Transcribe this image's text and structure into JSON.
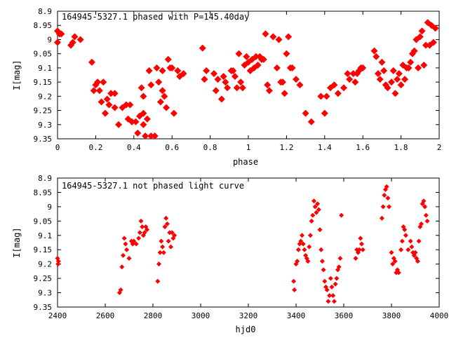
{
  "chart_data": [
    {
      "type": "scatter",
      "title": "164945-5327.1 phased with P=145.40day",
      "xlabel": "phase",
      "ylabel": "I[mag]",
      "xlim": [
        0,
        2
      ],
      "ylim": [
        9.35,
        8.9
      ],
      "y_inverted": true,
      "grid": false,
      "legend": "none",
      "marker_color": "#ff0000",
      "x_ticks": [
        "0",
        "0.2",
        "0.4",
        "0.6",
        "0.8",
        "1",
        "1.2",
        "1.4",
        "1.6",
        "1.8",
        "2"
      ],
      "y_ticks": [
        "8.9",
        "8.95",
        "9",
        "9.05",
        "9.1",
        "9.15",
        "9.2",
        "9.25",
        "9.3",
        "9.35"
      ],
      "points": [
        [
          0.0,
          8.97
        ],
        [
          0.01,
          8.98
        ],
        [
          0.02,
          8.98
        ],
        [
          0.0,
          9.01
        ],
        [
          0.07,
          9.02
        ],
        [
          0.08,
          9.01
        ],
        [
          0.09,
          8.99
        ],
        [
          0.12,
          9.0
        ],
        [
          0.18,
          9.08
        ],
        [
          0.19,
          9.18
        ],
        [
          0.2,
          9.16
        ],
        [
          0.21,
          9.15
        ],
        [
          0.22,
          9.18
        ],
        [
          0.23,
          9.22
        ],
        [
          0.24,
          9.15
        ],
        [
          0.25,
          9.26
        ],
        [
          0.26,
          9.21
        ],
        [
          0.27,
          9.23
        ],
        [
          0.28,
          9.19
        ],
        [
          0.3,
          9.19
        ],
        [
          0.3,
          9.24
        ],
        [
          0.32,
          9.3
        ],
        [
          0.34,
          9.24
        ],
        [
          0.36,
          9.23
        ],
        [
          0.37,
          9.28
        ],
        [
          0.38,
          9.23
        ],
        [
          0.39,
          9.29
        ],
        [
          0.41,
          9.29
        ],
        [
          0.42,
          9.33
        ],
        [
          0.43,
          9.27
        ],
        [
          0.44,
          9.17
        ],
        [
          0.45,
          9.2
        ],
        [
          0.45,
          9.26
        ],
        [
          0.45,
          9.3
        ],
        [
          0.46,
          9.34
        ],
        [
          0.47,
          9.28
        ],
        [
          0.48,
          9.11
        ],
        [
          0.49,
          9.16
        ],
        [
          0.49,
          9.34
        ],
        [
          0.51,
          9.34
        ],
        [
          0.52,
          9.1
        ],
        [
          0.53,
          9.15
        ],
        [
          0.54,
          9.22
        ],
        [
          0.55,
          9.18
        ],
        [
          0.55,
          9.11
        ],
        [
          0.56,
          9.2
        ],
        [
          0.57,
          9.24
        ],
        [
          0.58,
          9.07
        ],
        [
          0.59,
          9.1
        ],
        [
          0.6,
          9.1
        ],
        [
          0.61,
          9.26
        ],
        [
          0.63,
          9.11
        ],
        [
          0.64,
          9.13
        ],
        [
          0.66,
          9.12
        ],
        [
          0.76,
          9.03
        ],
        [
          0.77,
          9.14
        ],
        [
          0.78,
          9.11
        ],
        [
          0.82,
          9.12
        ],
        [
          0.83,
          9.18
        ],
        [
          0.84,
          9.14
        ],
        [
          0.86,
          9.21
        ],
        [
          0.87,
          9.13
        ],
        [
          0.88,
          9.15
        ],
        [
          0.89,
          9.17
        ],
        [
          0.91,
          9.11
        ],
        [
          0.92,
          9.11
        ],
        [
          0.93,
          9.13
        ],
        [
          0.94,
          9.17
        ],
        [
          0.95,
          9.05
        ],
        [
          0.96,
          9.15
        ],
        [
          0.97,
          9.17
        ],
        [
          0.98,
          9.09
        ],
        [
          0.99,
          9.06
        ],
        [
          1.0,
          9.08
        ],
        [
          1.01,
          9.11
        ],
        [
          1.02,
          9.07
        ],
        [
          1.03,
          9.1
        ],
        [
          1.04,
          9.06
        ],
        [
          1.05,
          9.09
        ],
        [
          1.06,
          9.06
        ],
        [
          1.07,
          9.07
        ],
        [
          1.08,
          9.07
        ],
        [
          1.09,
          8.98
        ],
        [
          1.1,
          9.16
        ],
        [
          1.11,
          9.18
        ],
        [
          1.13,
          8.99
        ],
        [
          1.15,
          9.1
        ],
        [
          1.16,
          9.0
        ],
        [
          1.17,
          9.15
        ],
        [
          1.18,
          9.15
        ],
        [
          1.19,
          9.19
        ],
        [
          1.2,
          9.05
        ],
        [
          1.21,
          8.99
        ],
        [
          1.22,
          9.1
        ],
        [
          1.23,
          9.1
        ],
        [
          1.25,
          9.14
        ],
        [
          1.27,
          9.16
        ],
        [
          1.3,
          9.26
        ],
        [
          1.33,
          9.29
        ],
        [
          1.38,
          9.2
        ],
        [
          1.4,
          9.26
        ],
        [
          1.41,
          9.2
        ],
        [
          1.43,
          9.17
        ],
        [
          1.45,
          9.16
        ],
        [
          1.47,
          9.19
        ],
        [
          1.5,
          9.17
        ],
        [
          1.52,
          9.12
        ],
        [
          1.53,
          9.14
        ],
        [
          1.55,
          9.12
        ],
        [
          1.56,
          9.15
        ],
        [
          1.57,
          9.12
        ],
        [
          1.58,
          9.11
        ],
        [
          1.59,
          9.1
        ],
        [
          1.6,
          9.1
        ],
        [
          1.66,
          9.04
        ],
        [
          1.67,
          9.06
        ],
        [
          1.68,
          9.12
        ],
        [
          1.69,
          9.14
        ],
        [
          1.7,
          9.08
        ],
        [
          1.71,
          9.11
        ],
        [
          1.72,
          9.16
        ],
        [
          1.73,
          9.17
        ],
        [
          1.75,
          9.15
        ],
        [
          1.76,
          9.11
        ],
        [
          1.77,
          9.19
        ],
        [
          1.78,
          9.14
        ],
        [
          1.79,
          9.12
        ],
        [
          1.8,
          9.16
        ],
        [
          1.81,
          9.09
        ],
        [
          1.82,
          9.14
        ],
        [
          1.83,
          9.1
        ],
        [
          1.84,
          9.1
        ],
        [
          1.85,
          9.08
        ],
        [
          1.86,
          9.05
        ],
        [
          1.87,
          9.04
        ],
        [
          1.88,
          9.0
        ],
        [
          1.89,
          9.1
        ],
        [
          1.9,
          8.99
        ],
        [
          1.91,
          8.97
        ],
        [
          1.92,
          9.09
        ],
        [
          1.93,
          9.02
        ],
        [
          1.94,
          8.94
        ],
        [
          1.95,
          9.02
        ],
        [
          1.96,
          8.95
        ],
        [
          1.97,
          9.01
        ],
        [
          1.98,
          8.96
        ]
      ]
    },
    {
      "type": "scatter",
      "title": "164945-5327.1 not phased light curve",
      "xlabel": "hjd0",
      "ylabel": "I[mag]",
      "xlim": [
        2400,
        4000
      ],
      "ylim": [
        9.35,
        8.9
      ],
      "y_inverted": true,
      "grid": false,
      "legend": "none",
      "marker_color": "#ff0000",
      "x_ticks": [
        "2400",
        "2600",
        "2800",
        "3000",
        "3200",
        "3400",
        "3600",
        "3800",
        "4000"
      ],
      "y_ticks": [
        "8.9",
        "8.95",
        "9",
        "9.05",
        "9.1",
        "9.15",
        "9.2",
        "9.25",
        "9.3",
        "9.35"
      ],
      "points": [
        [
          2400,
          9.18
        ],
        [
          2402,
          9.2
        ],
        [
          2404,
          9.19
        ],
        [
          2660,
          9.3
        ],
        [
          2665,
          9.29
        ],
        [
          2670,
          9.21
        ],
        [
          2675,
          9.17
        ],
        [
          2680,
          9.11
        ],
        [
          2685,
          9.13
        ],
        [
          2690,
          9.15
        ],
        [
          2700,
          9.18
        ],
        [
          2710,
          9.12
        ],
        [
          2715,
          9.13
        ],
        [
          2720,
          9.12
        ],
        [
          2730,
          9.13
        ],
        [
          2740,
          9.11
        ],
        [
          2745,
          9.09
        ],
        [
          2750,
          9.05
        ],
        [
          2755,
          9.07
        ],
        [
          2760,
          9.1
        ],
        [
          2765,
          9.09
        ],
        [
          2770,
          9.07
        ],
        [
          2775,
          9.08
        ],
        [
          2820,
          9.26
        ],
        [
          2825,
          9.2
        ],
        [
          2830,
          9.16
        ],
        [
          2835,
          9.12
        ],
        [
          2840,
          9.14
        ],
        [
          2845,
          9.16
        ],
        [
          2850,
          9.07
        ],
        [
          2855,
          9.04
        ],
        [
          2860,
          9.06
        ],
        [
          2865,
          9.12
        ],
        [
          2870,
          9.09
        ],
        [
          2875,
          9.14
        ],
        [
          2880,
          9.09
        ],
        [
          2885,
          9.11
        ],
        [
          2890,
          9.1
        ],
        [
          3390,
          9.26
        ],
        [
          3393,
          9.29
        ],
        [
          3400,
          9.2
        ],
        [
          3405,
          9.19
        ],
        [
          3410,
          9.15
        ],
        [
          3415,
          9.13
        ],
        [
          3420,
          9.12
        ],
        [
          3425,
          9.1
        ],
        [
          3430,
          9.13
        ],
        [
          3435,
          9.15
        ],
        [
          3440,
          9.17
        ],
        [
          3445,
          9.18
        ],
        [
          3450,
          9.19
        ],
        [
          3455,
          9.14
        ],
        [
          3460,
          9.1
        ],
        [
          3465,
          9.05
        ],
        [
          3470,
          9.03
        ],
        [
          3475,
          8.98
        ],
        [
          3480,
          9.0
        ],
        [
          3485,
          9.02
        ],
        [
          3490,
          8.99
        ],
        [
          3495,
          9.01
        ],
        [
          3500,
          9.08
        ],
        [
          3505,
          9.15
        ],
        [
          3510,
          9.19
        ],
        [
          3515,
          9.22
        ],
        [
          3520,
          9.26
        ],
        [
          3525,
          9.28
        ],
        [
          3530,
          9.29
        ],
        [
          3535,
          9.33
        ],
        [
          3540,
          9.31
        ],
        [
          3545,
          9.25
        ],
        [
          3550,
          9.28
        ],
        [
          3555,
          9.31
        ],
        [
          3560,
          9.33
        ],
        [
          3565,
          9.27
        ],
        [
          3570,
          9.25
        ],
        [
          3575,
          9.22
        ],
        [
          3580,
          9.21
        ],
        [
          3585,
          9.18
        ],
        [
          3590,
          9.03
        ],
        [
          3650,
          9.18
        ],
        [
          3655,
          9.15
        ],
        [
          3660,
          9.16
        ],
        [
          3665,
          9.15
        ],
        [
          3670,
          9.11
        ],
        [
          3675,
          9.13
        ],
        [
          3680,
          9.15
        ],
        [
          3760,
          9.04
        ],
        [
          3765,
          9.0
        ],
        [
          3770,
          8.96
        ],
        [
          3775,
          8.94
        ],
        [
          3780,
          8.93
        ],
        [
          3785,
          8.97
        ],
        [
          3790,
          9.0
        ],
        [
          3800,
          9.16
        ],
        [
          3805,
          9.2
        ],
        [
          3810,
          9.18
        ],
        [
          3815,
          9.19
        ],
        [
          3820,
          9.23
        ],
        [
          3825,
          9.22
        ],
        [
          3830,
          9.23
        ],
        [
          3840,
          9.15
        ],
        [
          3845,
          9.12
        ],
        [
          3850,
          9.07
        ],
        [
          3855,
          9.08
        ],
        [
          3860,
          9.1
        ],
        [
          3870,
          9.15
        ],
        [
          3880,
          9.12
        ],
        [
          3885,
          9.14
        ],
        [
          3890,
          9.16
        ],
        [
          3895,
          9.17
        ],
        [
          3900,
          9.16
        ],
        [
          3905,
          9.18
        ],
        [
          3910,
          9.19
        ],
        [
          3915,
          9.12
        ],
        [
          3920,
          9.07
        ],
        [
          3925,
          9.06
        ],
        [
          3930,
          8.99
        ],
        [
          3935,
          8.98
        ],
        [
          3940,
          9.0
        ],
        [
          3945,
          9.03
        ],
        [
          3950,
          9.05
        ]
      ]
    }
  ]
}
